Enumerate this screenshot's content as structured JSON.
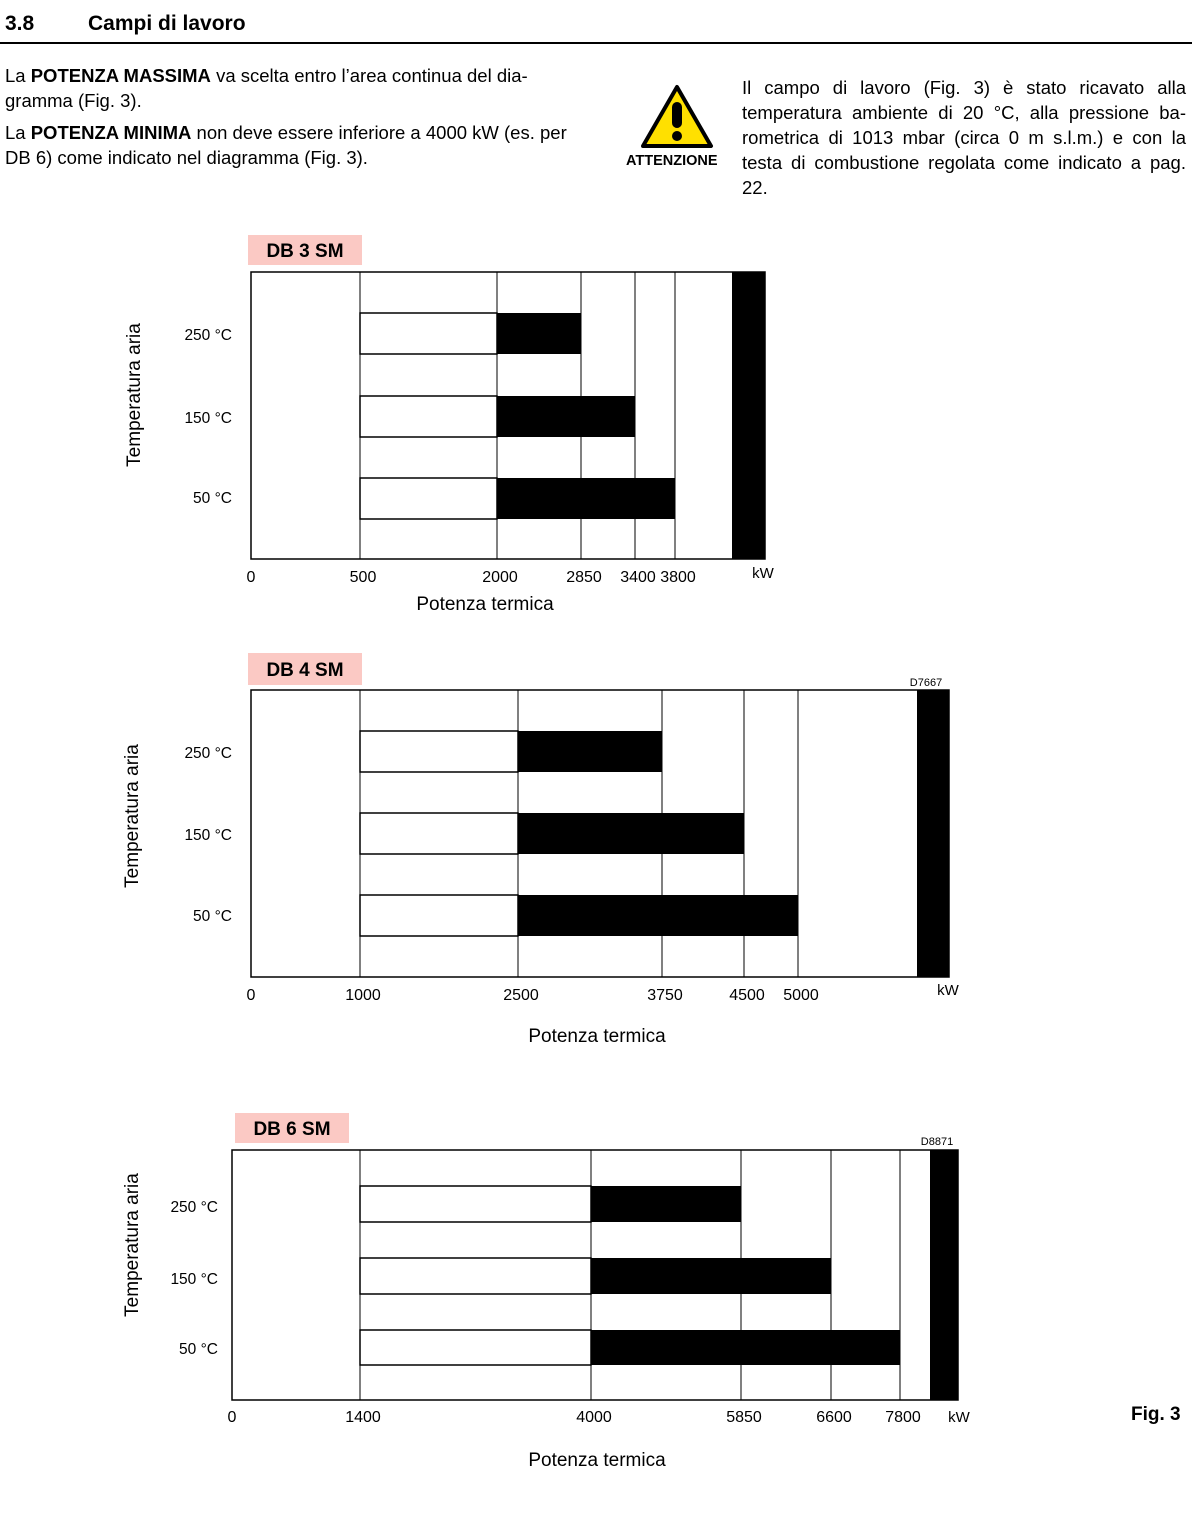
{
  "section": {
    "number": "3.8",
    "title": "Campi di lavoro"
  },
  "intro": {
    "p1_a": "La ",
    "p1_b": "POTENZA MASSIMA",
    "p1_c": " va scelta entro l’area continua del dia- gramma (Fig. 3).",
    "p2_a": "La ",
    "p2_b": "POTENZA MINIMA",
    "p2_c": " non deve essere inferiore a 4000 kW (es. per DB 6) come indicato nel diagramma (Fig. 3)."
  },
  "warning": {
    "icon": "warning-triangle-icon",
    "label": "ATTENZIONE",
    "colors": {
      "fill": "#FFE000",
      "stroke": "#000000"
    }
  },
  "note": "Il campo di lavoro (Fig. 3) è stato ricavato alla temperatura ambiente di 20 °C, alla pressione ba- rometrica di 1013 mbar (circa 0 m s.l.m.) e con la testa di combustione regolata come indicato a pag. 22.",
  "figure_label": "Fig. 3",
  "chart_data": [
    {
      "type": "bar",
      "title": "DB 3 SM",
      "xlabel": "Potenza termica",
      "ylabel": "Temperatura aria",
      "unit": "kW",
      "code": "",
      "x_ticks": [
        0,
        500,
        2000,
        2850,
        3400,
        3800
      ],
      "grid": true,
      "title_bg": "#FBC9C4",
      "bars": [
        {
          "label": "250°C",
          "white_from": 500,
          "min": 2000,
          "max": 2850
        },
        {
          "label": "150°C",
          "white_from": 500,
          "min": 2000,
          "max": 3400
        },
        {
          "label": "50°C",
          "white_from": 500,
          "min": 2000,
          "max": 3800
        }
      ]
    },
    {
      "type": "bar",
      "title": "DB 4 SM",
      "xlabel": "Potenza termica",
      "ylabel": "Temperatura aria",
      "unit": "kW",
      "code": "D7667",
      "x_ticks": [
        0,
        1000,
        2500,
        3750,
        4500,
        5000
      ],
      "grid": true,
      "title_bg": "#FBC9C4",
      "bars": [
        {
          "label": "250°C",
          "white_from": 1000,
          "min": 2500,
          "max": 3750
        },
        {
          "label": "150°C",
          "white_from": 1000,
          "min": 2500,
          "max": 4500
        },
        {
          "label": "50°C",
          "white_from": 1000,
          "min": 2500,
          "max": 5000
        }
      ]
    },
    {
      "type": "bar",
      "title": "DB 6 SM",
      "xlabel": "Potenza termica",
      "ylabel": "Temperatura aria",
      "unit": "kW",
      "code": "D8871",
      "x_ticks": [
        0,
        1400,
        4000,
        5850,
        6600,
        7800
      ],
      "grid": true,
      "title_bg": "#FBC9C4",
      "bars": [
        {
          "label": "250°C",
          "white_from": 1400,
          "min": 4000,
          "max": 5850
        },
        {
          "label": "150°C",
          "white_from": 1400,
          "min": 4000,
          "max": 6600
        },
        {
          "label": "50°C",
          "white_from": 1400,
          "min": 4000,
          "max": 7800
        }
      ]
    }
  ]
}
